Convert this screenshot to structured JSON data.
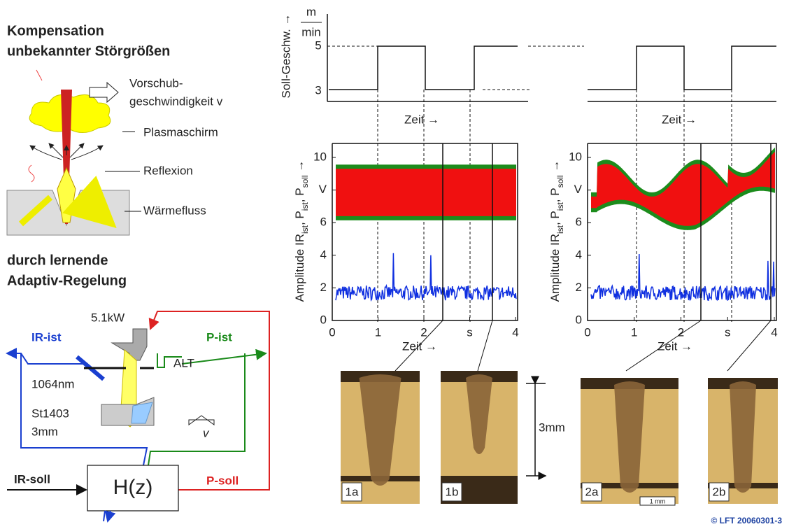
{
  "left": {
    "heading": [
      "Kompensation",
      "unbekannter Störgrößen"
    ],
    "labels": {
      "feed": [
        "Vorschub-",
        "geschwindigkeit v"
      ],
      "plasma": "Plasmaschirm",
      "reflection": "Reflexion",
      "heat": "Wärmefluss"
    },
    "heading2": [
      "durch lernende",
      "Adaptiv-Regelung"
    ],
    "control": {
      "power": "5.1kW",
      "ir_ist": "IR-ist",
      "p_ist": "P-ist",
      "alt": "ALT",
      "wavelength": "1064nm",
      "material": [
        "St1403",
        "3mm"
      ],
      "v": "v",
      "ir_soll": "IR-soll",
      "controller": "H(z)",
      "p_soll": "P-soll"
    }
  },
  "speed_chart": {
    "unit": [
      "m",
      "min"
    ],
    "yticks": [
      "5",
      "3"
    ],
    "y_label": "Soll-Geschw. →",
    "x_label": "Zeit  →"
  },
  "plots": [
    {
      "y_label": [
        "Amplitude IR",
        "ist",
        ", P",
        "ist",
        ", P",
        "soll",
        " →"
      ],
      "yticks": [
        "0",
        "2",
        "4",
        "6",
        "V",
        "10"
      ],
      "xticks": [
        "0",
        "1",
        "2",
        "s",
        "4"
      ],
      "x_label": "Zeit  →"
    },
    {
      "y_label": [
        "Amplitude IR",
        "ist",
        ", P",
        "ist",
        ", P",
        "soll",
        " →"
      ],
      "yticks": [
        "0",
        "2",
        "4",
        "6",
        "V",
        "10"
      ],
      "xticks": [
        "0",
        "1",
        "2",
        "s",
        "4"
      ],
      "x_label": "Zeit  →"
    }
  ],
  "micrographs": [
    "1a",
    "1b",
    "2a",
    "2b"
  ],
  "depth": "3mm",
  "scale": "1 mm",
  "copyright": "© LFT 20060301-3"
}
